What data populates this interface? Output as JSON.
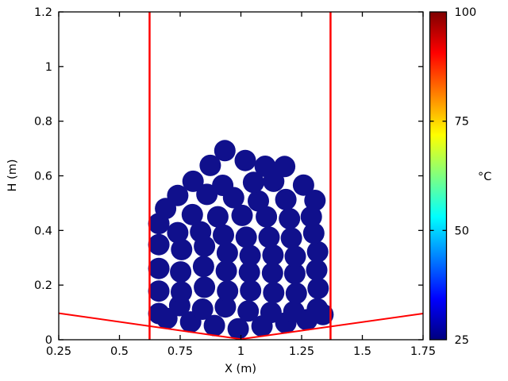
{
  "figure": {
    "background": "#ffffff"
  },
  "chart_data": {
    "type": "scatter",
    "title": "",
    "xlabel": "X (m)",
    "ylabel": "H (m)",
    "xlim": [
      0.25,
      1.75
    ],
    "ylim": [
      0,
      1.2
    ],
    "xticks": [
      0.25,
      0.5,
      0.75,
      1,
      1.25,
      1.5,
      1.75
    ],
    "xtick_labels": [
      "0.25",
      "0.5",
      "0.75",
      "1",
      "1.25",
      "1.5",
      "1.75"
    ],
    "yticks": [
      0,
      0.2,
      0.4,
      0.6,
      0.8,
      1,
      1.2
    ],
    "ytick_labels": [
      "0",
      "0.2",
      "0.4",
      "0.6",
      "0.8",
      "1",
      "1.2"
    ],
    "grid": false,
    "legend": null,
    "particles": {
      "temperature_c": 25,
      "marker_color": "#10108c",
      "marker_diameter_px": 27,
      "points": [
        [
          0.695,
          0.078
        ],
        [
          0.793,
          0.065
        ],
        [
          0.891,
          0.052
        ],
        [
          0.989,
          0.04
        ],
        [
          1.087,
          0.05
        ],
        [
          1.185,
          0.062
        ],
        [
          1.272,
          0.073
        ],
        [
          1.338,
          0.092
        ],
        [
          0.662,
          0.096
        ],
        [
          0.748,
          0.125
        ],
        [
          0.842,
          0.112
        ],
        [
          0.936,
          0.12
        ],
        [
          1.03,
          0.105
        ],
        [
          1.124,
          0.1
        ],
        [
          1.218,
          0.103
        ],
        [
          1.315,
          0.113
        ],
        [
          0.662,
          0.178
        ],
        [
          0.755,
          0.175
        ],
        [
          0.85,
          0.192
        ],
        [
          0.945,
          0.178
        ],
        [
          1.04,
          0.18
        ],
        [
          1.135,
          0.172
        ],
        [
          1.228,
          0.17
        ],
        [
          1.318,
          0.188
        ],
        [
          0.662,
          0.261
        ],
        [
          0.752,
          0.248
        ],
        [
          0.846,
          0.268
        ],
        [
          0.94,
          0.252
        ],
        [
          1.035,
          0.247
        ],
        [
          1.13,
          0.244
        ],
        [
          1.222,
          0.242
        ],
        [
          1.312,
          0.255
        ],
        [
          0.662,
          0.348
        ],
        [
          0.756,
          0.33
        ],
        [
          0.85,
          0.342
        ],
        [
          0.944,
          0.318
        ],
        [
          1.038,
          0.308
        ],
        [
          1.132,
          0.31
        ],
        [
          1.224,
          0.305
        ],
        [
          1.316,
          0.322
        ],
        [
          0.662,
          0.425
        ],
        [
          0.74,
          0.392
        ],
        [
          0.834,
          0.395
        ],
        [
          0.928,
          0.383
        ],
        [
          1.022,
          0.375
        ],
        [
          1.116,
          0.375
        ],
        [
          1.208,
          0.372
        ],
        [
          1.3,
          0.39
        ],
        [
          0.69,
          0.48
        ],
        [
          0.8,
          0.458
        ],
        [
          0.905,
          0.45
        ],
        [
          1.005,
          0.455
        ],
        [
          1.105,
          0.45
        ],
        [
          1.2,
          0.443
        ],
        [
          1.29,
          0.45
        ],
        [
          0.74,
          0.528
        ],
        [
          0.86,
          0.532
        ],
        [
          0.97,
          0.52
        ],
        [
          1.072,
          0.508
        ],
        [
          1.185,
          0.513
        ],
        [
          1.305,
          0.51
        ],
        [
          0.803,
          0.58
        ],
        [
          0.925,
          0.565
        ],
        [
          1.052,
          0.576
        ],
        [
          1.135,
          0.58
        ],
        [
          1.258,
          0.566
        ],
        [
          0.874,
          0.638
        ],
        [
          1.018,
          0.656
        ],
        [
          1.1,
          0.635
        ],
        [
          1.18,
          0.634
        ],
        [
          0.934,
          0.692
        ]
      ]
    },
    "boundaries": {
      "color": "#ff0000",
      "walls_x": [
        0.624,
        1.369
      ],
      "floor_polyline": [
        [
          0.25,
          0.097
        ],
        [
          1.0,
          0.002
        ],
        [
          1.75,
          0.096
        ]
      ]
    },
    "colorbar": {
      "label": "°C",
      "min": 25,
      "max": 100,
      "ticks": [
        25,
        50,
        75,
        100
      ],
      "tick_labels": [
        "25",
        "50",
        "75",
        "100"
      ],
      "gradient_stops": [
        {
          "value": 25,
          "color": "#00007f"
        },
        {
          "value": 34.4,
          "color": "#0000ff"
        },
        {
          "value": 53.1,
          "color": "#00ffff"
        },
        {
          "value": 71.9,
          "color": "#ffff00"
        },
        {
          "value": 90.6,
          "color": "#ff0000"
        },
        {
          "value": 100,
          "color": "#7f0000"
        }
      ]
    }
  }
}
